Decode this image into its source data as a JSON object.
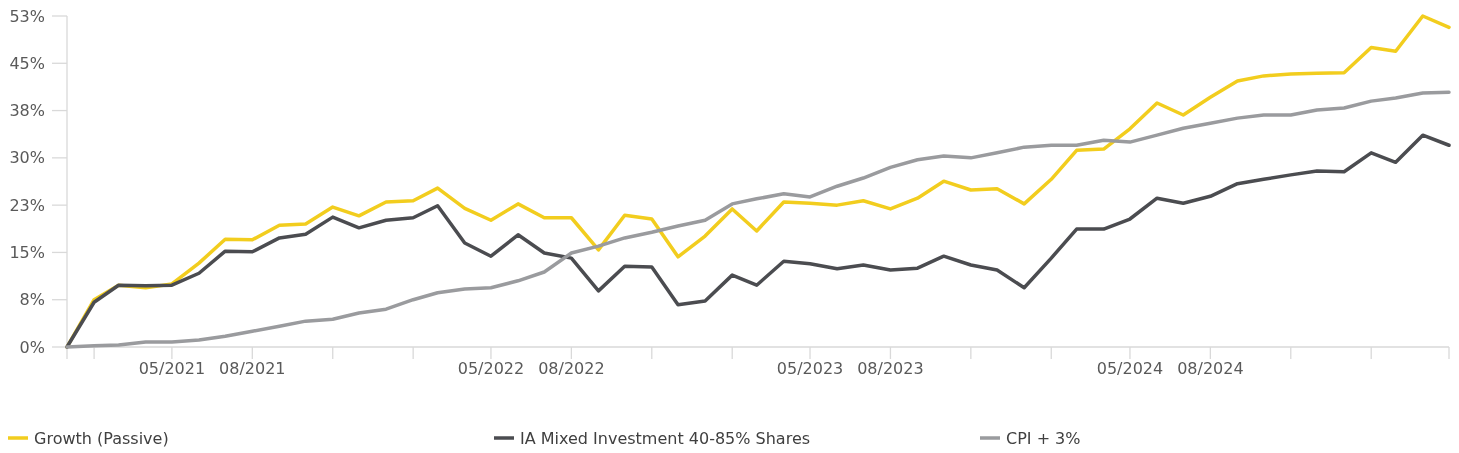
{
  "chart_data": {
    "type": "line",
    "x": [
      "2021-01",
      "2021-02",
      "2021-03",
      "2021-04",
      "2021-05",
      "2021-06",
      "2021-07",
      "2021-08",
      "2021-09",
      "2021-10",
      "2021-11",
      "2021-12",
      "2022-01",
      "2022-02",
      "2022-03",
      "2022-04",
      "2022-05",
      "2022-06",
      "2022-07",
      "2022-08",
      "2022-09",
      "2022-10",
      "2022-11",
      "2022-12",
      "2023-01",
      "2023-02",
      "2023-03",
      "2023-04",
      "2023-05",
      "2023-06",
      "2023-07",
      "2023-08",
      "2023-09",
      "2023-10",
      "2023-11",
      "2023-12",
      "2024-01",
      "2024-02",
      "2024-03",
      "2024-04",
      "2024-05",
      "2024-06",
      "2024-07",
      "2024-08",
      "2024-09",
      "2024-10",
      "2024-11",
      "2024-12",
      "2025-01",
      "2025-02",
      "2025-03",
      "2025-04",
      "2025-05"
    ],
    "series": [
      {
        "name": "Growth (Passive)",
        "color": "#f2cd1e",
        "values": [
          0,
          7.5,
          9.8,
          9.4,
          10.0,
          13.3,
          17.1,
          17.0,
          19.3,
          19.5,
          22.2,
          20.8,
          23.0,
          23.2,
          25.2,
          22.0,
          20.1,
          22.7,
          20.5,
          20.5,
          15.4,
          20.9,
          20.3,
          14.3,
          17.6,
          21.9,
          18.4,
          23.0,
          22.8,
          22.5,
          23.2,
          21.9,
          23.6,
          26.3,
          24.9,
          25.1,
          22.7,
          26.6,
          31.2,
          31.4,
          34.6,
          38.7,
          36.8,
          39.6,
          42.2,
          43.0,
          43.3,
          43.4,
          43.5,
          47.5,
          46.9,
          52.5,
          50.7
        ]
      },
      {
        "name": "IA Mixed Investment 40-85% Shares",
        "color": "#4b4c50",
        "values": [
          0,
          7.1,
          9.8,
          9.7,
          9.8,
          11.7,
          15.2,
          15.1,
          17.3,
          17.9,
          20.6,
          18.9,
          20.1,
          20.5,
          22.4,
          16.5,
          14.4,
          17.8,
          14.9,
          14.1,
          8.9,
          12.8,
          12.7,
          6.7,
          7.3,
          11.4,
          9.8,
          13.6,
          13.2,
          12.4,
          13.0,
          12.2,
          12.5,
          14.4,
          13.0,
          12.2,
          9.4,
          14.1,
          18.7,
          18.7,
          20.3,
          23.6,
          22.8,
          23.9,
          25.9,
          26.6,
          27.3,
          27.9,
          27.8,
          30.8,
          29.3,
          33.6,
          32.0
        ]
      },
      {
        "name": "CPI + 3%",
        "color": "#9a9b9e",
        "values": [
          0,
          0.2,
          0.3,
          0.8,
          0.8,
          1.1,
          1.7,
          2.5,
          3.3,
          4.1,
          4.4,
          5.4,
          6.0,
          7.5,
          8.6,
          9.2,
          9.4,
          10.5,
          11.9,
          14.9,
          16.0,
          17.3,
          18.2,
          19.2,
          20.1,
          22.7,
          23.5,
          24.3,
          23.8,
          25.5,
          26.8,
          28.5,
          29.7,
          30.3,
          30.0,
          30.8,
          31.7,
          32.0,
          32.0,
          32.8,
          32.5,
          33.6,
          34.7,
          35.5,
          36.3,
          36.8,
          36.8,
          37.6,
          37.9,
          39.0,
          39.5,
          40.3,
          40.4
        ]
      }
    ],
    "xlim": [
      "2021-01",
      "2025-05"
    ],
    "xticks": [
      {
        "value": "2021-02",
        "label": null
      },
      {
        "value": "2021-05",
        "label": "05/2021"
      },
      {
        "value": "2021-08",
        "label": "08/2021"
      },
      {
        "value": "2021-11",
        "label": null
      },
      {
        "value": "2022-02",
        "label": null
      },
      {
        "value": "2022-05",
        "label": "05/2022"
      },
      {
        "value": "2022-08",
        "label": "08/2022"
      },
      {
        "value": "2022-11",
        "label": null
      },
      {
        "value": "2023-02",
        "label": null
      },
      {
        "value": "2023-05",
        "label": "05/2023"
      },
      {
        "value": "2023-08",
        "label": "08/2023"
      },
      {
        "value": "2023-11",
        "label": null
      },
      {
        "value": "2024-02",
        "label": null
      },
      {
        "value": "2024-05",
        "label": "05/2024"
      },
      {
        "value": "2024-08",
        "label": "08/2024"
      },
      {
        "value": "2024-11",
        "label": null
      },
      {
        "value": "2025-02",
        "label": null
      },
      {
        "value": "2025-05",
        "label": null
      }
    ],
    "ylim": [
      0,
      52.5
    ],
    "yticks": [
      {
        "value": 0,
        "label": "0%"
      },
      {
        "value": 7.5,
        "label": "8%"
      },
      {
        "value": 15,
        "label": "15%"
      },
      {
        "value": 22.5,
        "label": "23%"
      },
      {
        "value": 30,
        "label": "30%"
      },
      {
        "value": 37.5,
        "label": "38%"
      },
      {
        "value": 45,
        "label": "45%"
      },
      {
        "value": 52.5,
        "label": "53%"
      }
    ],
    "grid": false,
    "legend": "bottom",
    "marker": "none",
    "line_style": "solid"
  }
}
